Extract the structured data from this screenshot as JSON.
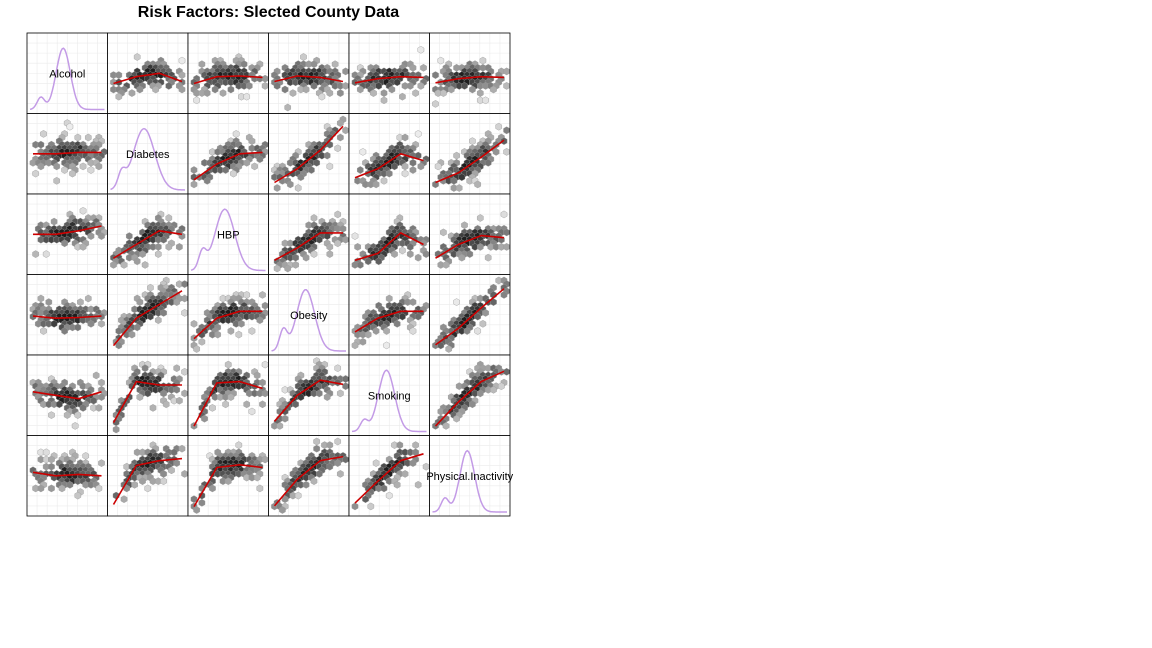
{
  "chart_data": {
    "type": "scatter",
    "title": "Risk Factors: Slected County Data",
    "variables": [
      "Alcohol",
      "Diabetes",
      "HBP",
      "Obesity",
      "Smoking",
      "Physical.Inactivity"
    ],
    "diagonal": "density",
    "off_diagonal": "hexbin scatter with red loess smoother",
    "grid": true,
    "colors": {
      "density": "#c39be6",
      "smoother": "#cc0000",
      "hex_dark": "#1a1a1a",
      "hex_light": "#d3d3d3"
    },
    "smoothers": {
      "0-1": [
        0.35,
        0.45,
        0.5,
        0.38
      ],
      "0-2": [
        0.35,
        0.45,
        0.46,
        0.44
      ],
      "0-3": [
        0.38,
        0.46,
        0.44,
        0.38
      ],
      "0-4": [
        0.36,
        0.42,
        0.45,
        0.44
      ],
      "0-5": [
        0.36,
        0.42,
        0.45,
        0.44
      ],
      "1-0": [
        0.5,
        0.5,
        0.52,
        0.52
      ],
      "1-2": [
        0.12,
        0.35,
        0.5,
        0.52
      ],
      "1-3": [
        0.08,
        0.28,
        0.55,
        0.9
      ],
      "1-4": [
        0.15,
        0.28,
        0.5,
        0.4
      ],
      "1-5": [
        0.08,
        0.22,
        0.45,
        0.7
      ],
      "2-0": [
        0.5,
        0.5,
        0.55,
        0.62
      ],
      "2-1": [
        0.15,
        0.35,
        0.55,
        0.5
      ],
      "2-3": [
        0.12,
        0.3,
        0.52,
        0.52
      ],
      "2-4": [
        0.12,
        0.22,
        0.52,
        0.35
      ],
      "2-5": [
        0.15,
        0.35,
        0.48,
        0.45
      ],
      "3-0": [
        0.48,
        0.45,
        0.46,
        0.48
      ],
      "3-1": [
        0.05,
        0.45,
        0.65,
        0.85
      ],
      "3-2": [
        0.15,
        0.45,
        0.55,
        0.55
      ],
      "3-4": [
        0.25,
        0.45,
        0.55,
        0.55
      ],
      "3-5": [
        0.06,
        0.3,
        0.6,
        0.88
      ],
      "4-0": [
        0.55,
        0.5,
        0.45,
        0.55
      ],
      "4-1": [
        0.1,
        0.7,
        0.65,
        0.65
      ],
      "4-2": [
        0.05,
        0.68,
        0.7,
        0.6
      ],
      "4-3": [
        0.12,
        0.5,
        0.72,
        0.66
      ],
      "4-5": [
        0.05,
        0.4,
        0.7,
        0.85
      ],
      "5-0": [
        0.55,
        0.5,
        0.52,
        0.5
      ],
      "5-1": [
        0.08,
        0.65,
        0.72,
        0.75
      ],
      "5-2": [
        0.05,
        0.62,
        0.66,
        0.62
      ],
      "5-3": [
        0.06,
        0.45,
        0.72,
        0.78
      ],
      "5-4": [
        0.1,
        0.42,
        0.72,
        0.82
      ]
    }
  }
}
